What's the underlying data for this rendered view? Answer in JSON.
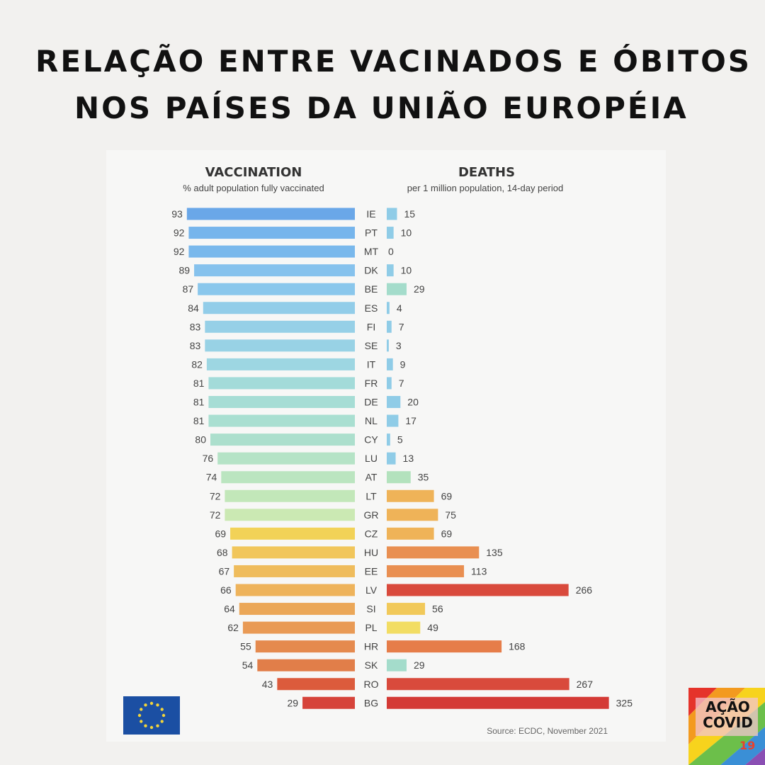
{
  "headline": {
    "line1": "RELAÇÃO ENTRE VACINADOS E ÓBITOS",
    "line2": "NOS PAÍSES DA UNIÃO EUROPÉIA"
  },
  "chart_data": {
    "type": "bar",
    "layout": "back-to-back horizontal bars",
    "left_panel": {
      "title": "VACCINATION",
      "subtitle": "% adult population fully vaccinated"
    },
    "right_panel": {
      "title": "DEATHS",
      "subtitle": "per 1 million population, 14-day period"
    },
    "categories": [
      "IE",
      "PT",
      "MT",
      "DK",
      "BE",
      "ES",
      "FI",
      "SE",
      "IT",
      "FR",
      "DE",
      "NL",
      "CY",
      "LU",
      "AT",
      "LT",
      "GR",
      "CZ",
      "HU",
      "EE",
      "LV",
      "SI",
      "PL",
      "HR",
      "SK",
      "RO",
      "BG"
    ],
    "series": [
      {
        "name": "VACCINATION",
        "values": [
          93,
          92,
          92,
          89,
          87,
          84,
          83,
          83,
          82,
          81,
          81,
          81,
          80,
          76,
          74,
          72,
          72,
          69,
          68,
          67,
          66,
          64,
          62,
          55,
          54,
          43,
          29
        ]
      },
      {
        "name": "DEATHS",
        "values": [
          15,
          10,
          0,
          10,
          29,
          4,
          7,
          3,
          9,
          7,
          20,
          17,
          5,
          13,
          35,
          69,
          75,
          69,
          135,
          113,
          266,
          56,
          49,
          168,
          29,
          267,
          325
        ]
      }
    ],
    "vaccination_colors": [
      "#6aa7e8",
      "#76b5ec",
      "#79b8ec",
      "#86c2ed",
      "#8ac7ec",
      "#92cde9",
      "#96d0e7",
      "#98d2e5",
      "#9dd6e2",
      "#a3dbd9",
      "#a6ddd5",
      "#a9dfd1",
      "#acdfcd",
      "#b5e3c6",
      "#bbe5c0",
      "#c2e7b9",
      "#cbe9b3",
      "#f2d257",
      "#f1c65b",
      "#efbc5c",
      "#eeb35b",
      "#eba758",
      "#e99a55",
      "#e58a4e",
      "#e17e49",
      "#dc5b3c",
      "#d6433a"
    ],
    "death_colors": [
      "#8fcce7",
      "#8fcce7",
      "#8fcce7",
      "#8fcce7",
      "#a4dccb",
      "#8fcce7",
      "#8fcce7",
      "#8fcce7",
      "#8fcce7",
      "#8fcce7",
      "#8fcce7",
      "#8fcce7",
      "#8fcce7",
      "#8fcce7",
      "#b3e2bd",
      "#efb358",
      "#efb358",
      "#efb358",
      "#e98f51",
      "#e98f51",
      "#d94a3c",
      "#f1c95a",
      "#f2dd63",
      "#e67d49",
      "#a4dccb",
      "#d94a3c",
      "#d43a35"
    ],
    "source": "Source: ECDC, November 2021"
  },
  "logo": {
    "line1": "AÇÃO",
    "line2": "COVID",
    "num": "19"
  },
  "colors": {
    "background": "#f2f1ef",
    "card": "#f7f7f6",
    "text": "#111111",
    "flag": "#1b4fa3",
    "flag_stars": "#f2d43a"
  },
  "icons": {
    "flag": "eu-flag-icon",
    "logo": "acao-covid-logo"
  }
}
